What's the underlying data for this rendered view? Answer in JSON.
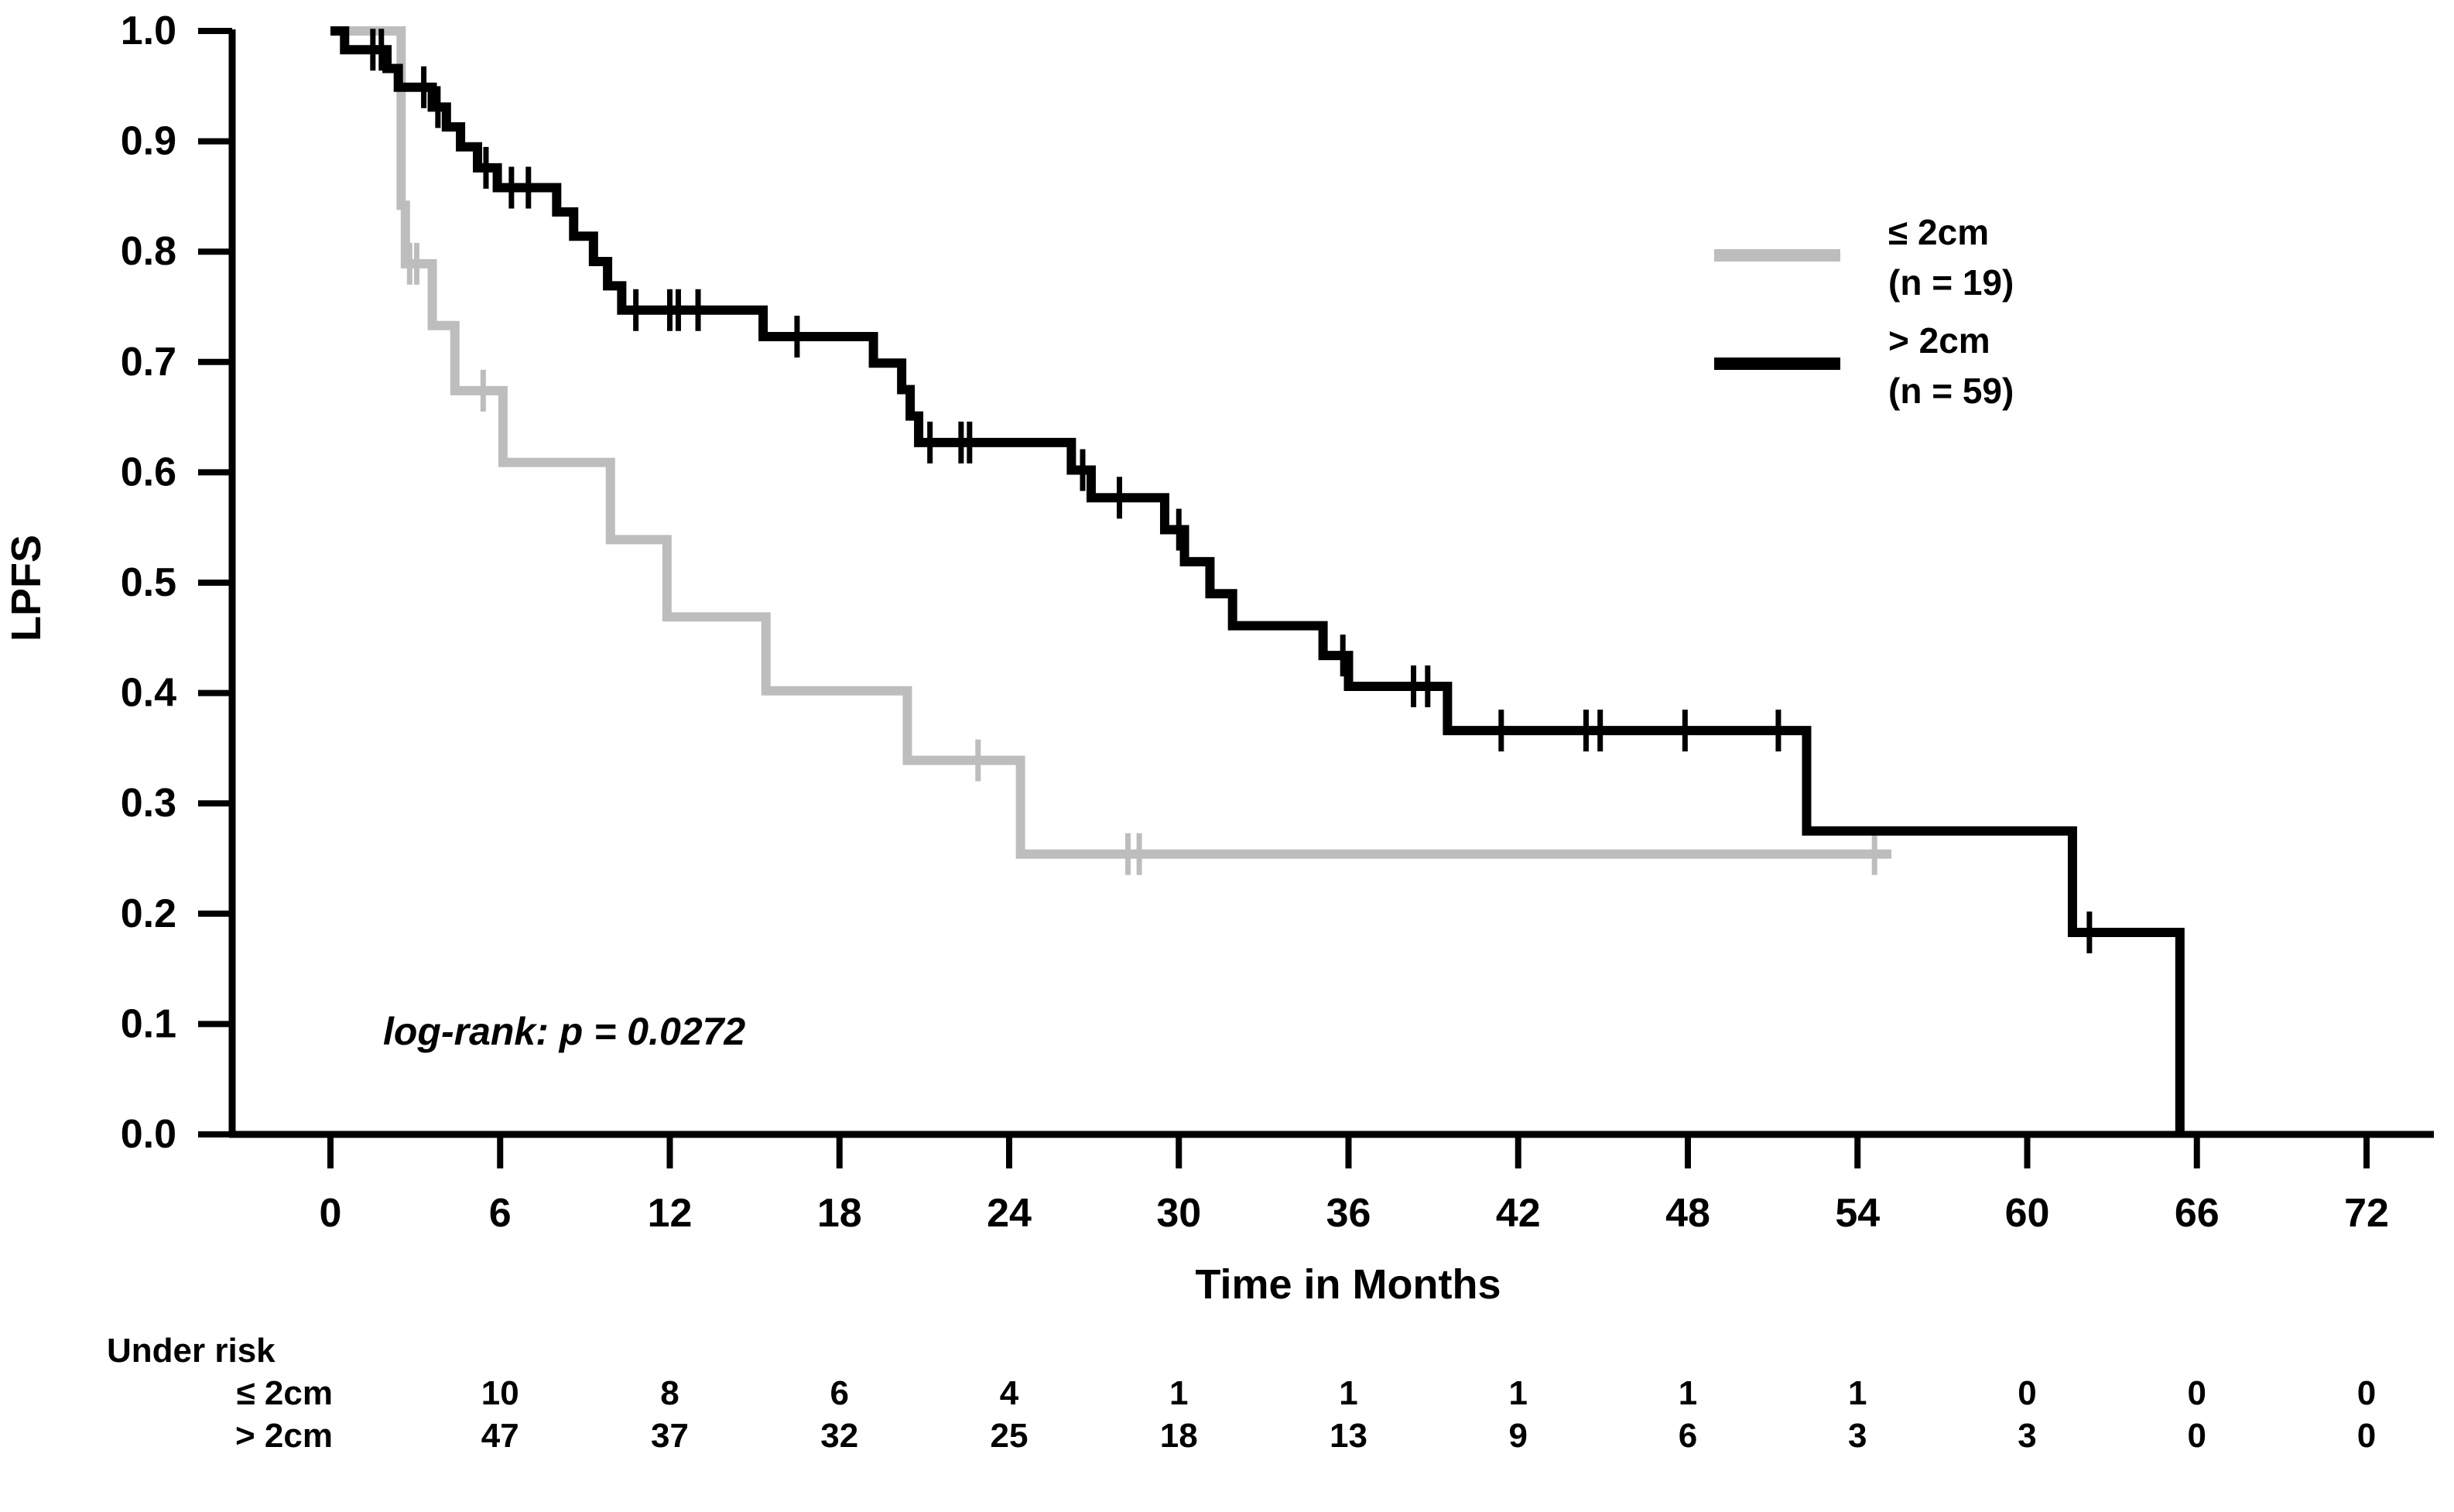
{
  "figure": {
    "ylabel": "LPFS",
    "xlabel": "Time in Months",
    "annotation": "log-rank: p = 0.0272",
    "background_color": "#ffffff",
    "axis_color": "#000000"
  },
  "legend": [
    {
      "label": "≤ 2cm",
      "n_label": "(n = 19)",
      "color": "#bdbdbd"
    },
    {
      "label": "> 2cm",
      "n_label": "(n = 59)",
      "color": "#000000"
    }
  ],
  "chart_data": {
    "type": "line",
    "subtype": "kaplan-meier-step",
    "title": "",
    "xlabel": "Time in Months",
    "ylabel": "LPFS",
    "xlim": [
      0,
      72
    ],
    "ylim": [
      0.0,
      1.0
    ],
    "grid": false,
    "legend_position": "upper-right-inside",
    "xticks": [
      0,
      6,
      12,
      18,
      24,
      30,
      36,
      42,
      48,
      54,
      60,
      66,
      72
    ],
    "yticks": [
      "0.0",
      "0.1",
      "0.2",
      "0.3",
      "0.4",
      "0.5",
      "0.6",
      "0.7",
      "0.8",
      "0.9",
      "1.0"
    ],
    "annotation": "log-rank: p = 0.0272",
    "series": [
      {
        "name": "≤ 2cm (n = 19)",
        "color": "#bdbdbd",
        "steps": [
          [
            0,
            1.0
          ],
          [
            2.5,
            0.842
          ],
          [
            2.65,
            0.789
          ],
          [
            3.6,
            0.733
          ],
          [
            4.4,
            0.674
          ],
          [
            6.1,
            0.609
          ],
          [
            9.9,
            0.539
          ],
          [
            11.9,
            0.469
          ],
          [
            15.4,
            0.402
          ],
          [
            20.4,
            0.339
          ],
          [
            24.4,
            0.254
          ]
        ],
        "censor_months": [
          2.8,
          3.05,
          5.4,
          22.9,
          28.2,
          28.6,
          54.6
        ],
        "end_month": 55.2,
        "ends_at_zero": false
      },
      {
        "name": "> 2cm (n = 59)",
        "color": "#000000",
        "steps": [
          [
            0,
            1.0
          ],
          [
            0.5,
            0.983
          ],
          [
            2.0,
            0.966
          ],
          [
            2.4,
            0.949
          ],
          [
            3.6,
            0.931
          ],
          [
            4.1,
            0.913
          ],
          [
            4.6,
            0.895
          ],
          [
            5.2,
            0.876
          ],
          [
            5.9,
            0.858
          ],
          [
            8.0,
            0.836
          ],
          [
            8.6,
            0.814
          ],
          [
            9.3,
            0.791
          ],
          [
            9.8,
            0.769
          ],
          [
            10.3,
            0.747
          ],
          [
            15.3,
            0.723
          ],
          [
            19.2,
            0.699
          ],
          [
            20.2,
            0.675
          ],
          [
            20.5,
            0.651
          ],
          [
            20.8,
            0.627
          ],
          [
            26.2,
            0.602
          ],
          [
            26.9,
            0.577
          ],
          [
            29.5,
            0.548
          ],
          [
            30.2,
            0.519
          ],
          [
            31.1,
            0.49
          ],
          [
            31.9,
            0.461
          ],
          [
            35.1,
            0.434
          ],
          [
            36.0,
            0.406
          ],
          [
            39.5,
            0.366
          ],
          [
            52.2,
            0.275
          ],
          [
            61.6,
            0.183
          ],
          [
            65.4,
            0.0
          ]
        ],
        "censor_months": [
          1.5,
          1.8,
          3.3,
          3.8,
          5.5,
          6.4,
          7.0,
          10.8,
          12.0,
          12.3,
          13.0,
          16.5,
          21.2,
          22.3,
          22.6,
          26.6,
          27.9,
          30.0,
          35.8,
          38.3,
          38.8,
          41.4,
          44.4,
          44.9,
          47.9,
          51.2,
          62.2
        ],
        "end_month": 65.4,
        "ends_at_zero": true
      }
    ]
  },
  "risk_table": {
    "title": "Under risk",
    "months": [
      6,
      12,
      18,
      24,
      30,
      36,
      42,
      48,
      54,
      60,
      66,
      72
    ],
    "rows": [
      {
        "label": "≤ 2cm",
        "values": [
          10,
          8,
          6,
          4,
          1,
          1,
          1,
          1,
          1,
          0,
          0,
          0
        ]
      },
      {
        "label": "> 2cm",
        "values": [
          47,
          37,
          32,
          25,
          18,
          13,
          9,
          6,
          3,
          3,
          0,
          0
        ]
      }
    ]
  }
}
